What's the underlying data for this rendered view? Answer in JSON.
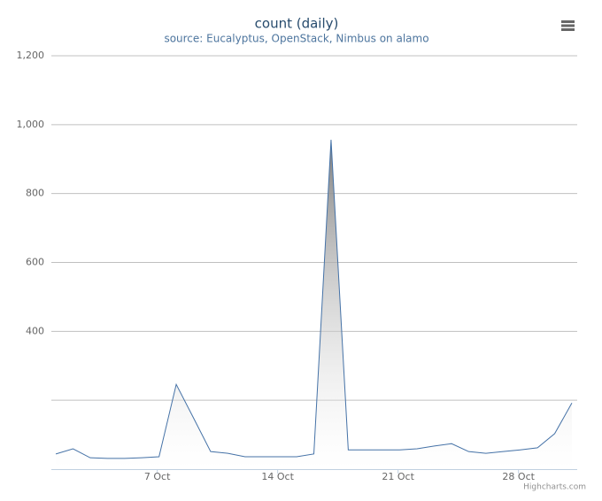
{
  "chart_data": {
    "type": "area",
    "title": "count (daily)",
    "subtitle": "source: Eucalyptus, OpenStack, Nimbus on alamo",
    "x": [
      1,
      2,
      3,
      4,
      5,
      6,
      7,
      8,
      9,
      10,
      11,
      12,
      13,
      14,
      15,
      16,
      17,
      18,
      19,
      20,
      21,
      22,
      23,
      24,
      25,
      26,
      27,
      28,
      29,
      30,
      31
    ],
    "series": [
      {
        "name": "count",
        "color": "#4572a7",
        "values": [
          44,
          59,
          33,
          31,
          31,
          33,
          36,
          246,
          149,
          51,
          46,
          36,
          36,
          36,
          36,
          44,
          956,
          56,
          56,
          56,
          56,
          59,
          67,
          74,
          51,
          46,
          51,
          56,
          62,
          103,
          192
        ]
      }
    ],
    "xlim": [
      0.74,
      31.31
    ],
    "xticks": [
      {
        "value": 7,
        "label": "7 Oct"
      },
      {
        "value": 14,
        "label": "14 Oct"
      },
      {
        "value": 21,
        "label": "21 Oct"
      },
      {
        "value": 28,
        "label": "28 Oct"
      }
    ],
    "ylim": [
      0,
      1200
    ],
    "yticks": [
      {
        "value": 200
      },
      400,
      600,
      800,
      {
        "value": 1000,
        "label": "1,000"
      },
      {
        "value": 1200,
        "label": "1,200"
      }
    ],
    "grid": true,
    "credits": "Highcharts.com"
  }
}
